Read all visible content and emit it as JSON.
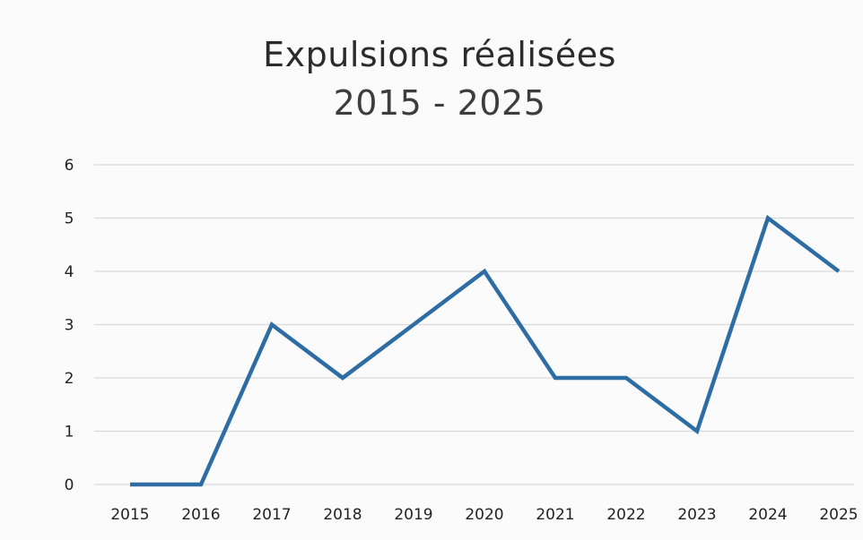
{
  "chart_data": {
    "type": "line",
    "title": "Expulsions réalisées",
    "subtitle": "2015 - 2025",
    "categories": [
      "2015",
      "2016",
      "2017",
      "2018",
      "2019",
      "2020",
      "2021",
      "2022",
      "2023",
      "2024",
      "2025"
    ],
    "series": [
      {
        "values": [
          0,
          0,
          3,
          2,
          3,
          4,
          2,
          2,
          1,
          5,
          4
        ]
      }
    ],
    "ylim": [
      0,
      6
    ],
    "yticks": [
      0,
      1,
      2,
      3,
      4,
      5,
      6
    ],
    "grid": true,
    "colors": {
      "line": "#2e6da4",
      "grid": "#d9d9d9",
      "text": "#222222"
    }
  }
}
